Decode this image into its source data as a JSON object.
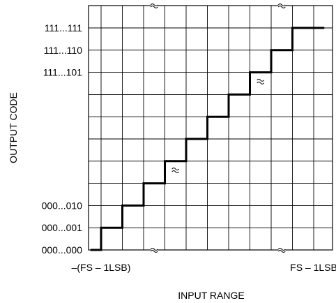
{
  "chart_data": {
    "type": "line",
    "title": "",
    "xlabel": "INPUT RANGE",
    "ylabel": "OUTPUT CODE",
    "x_tick_labels": [
      {
        "x": 0,
        "label": "–(FS – 1LSB)"
      },
      {
        "x": 10,
        "label": "FS – 1LSB"
      }
    ],
    "y_tick_labels": [
      {
        "y": 0,
        "label": "000...000"
      },
      {
        "y": 1,
        "label": "000...001"
      },
      {
        "y": 2,
        "label": "000...010"
      },
      {
        "y": 8,
        "label": "111...101"
      },
      {
        "y": 9,
        "label": "111...110"
      },
      {
        "y": 10,
        "label": "111...111"
      }
    ],
    "xlim": [
      -0.6,
      10.3
    ],
    "ylim": [
      -0.2,
      10.8
    ],
    "grid": true,
    "axis_breaks": [
      {
        "axis": "x",
        "at": 2.5,
        "position": "top"
      },
      {
        "axis": "x",
        "at": 2.5,
        "position": "bottom"
      },
      {
        "axis": "x",
        "at": 8.5,
        "position": "top"
      },
      {
        "axis": "x",
        "at": 8.5,
        "position": "bottom"
      }
    ],
    "curve_breaks": [
      {
        "x": 3.5,
        "y": 3.6
      },
      {
        "x": 7.5,
        "y": 7.6
      }
    ],
    "series": [
      {
        "x": [
          -0.5,
          0,
          0,
          1,
          1,
          2,
          2,
          3,
          3,
          4,
          4,
          5,
          5,
          6,
          6,
          7,
          7,
          8,
          8,
          9,
          9,
          10,
          10,
          10.5
        ],
        "y": [
          0,
          0,
          1,
          1,
          2,
          2,
          3,
          3,
          4,
          4,
          5,
          5,
          6,
          6,
          7,
          7,
          8,
          8,
          9,
          9,
          10,
          10,
          10,
          10
        ],
        "color": "#000000"
      }
    ]
  }
}
